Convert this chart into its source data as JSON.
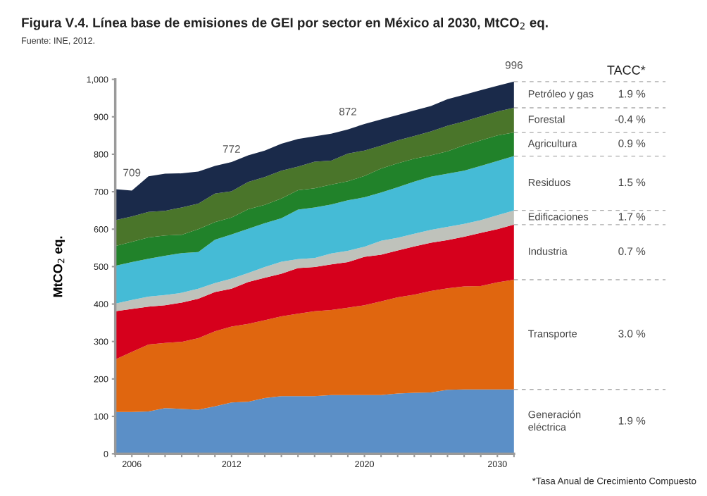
{
  "chart_data": {
    "type": "area",
    "stacked": true,
    "title": "Figura V.4. Línea base de emisiones de GEI por sector en México al 2030, MtCO$_{2}$ eq.",
    "subtitle": "Fuente: INE, 2012.",
    "ylabel": "MtCO$_{2}$ eq.",
    "categories": [
      null,
      "2006",
      null,
      null,
      null,
      null,
      null,
      "2012",
      null,
      null,
      null,
      null,
      null,
      null,
      null,
      "2020",
      null,
      null,
      null,
      null,
      null,
      null,
      null,
      "2030",
      null
    ],
    "series": [
      {
        "name": "Generación\neléctrica",
        "color": "#5b8fc7",
        "values": [
          112,
          112,
          113,
          122,
          120,
          118,
          127,
          137,
          139,
          149,
          154,
          154,
          154,
          157,
          157,
          157,
          157,
          161,
          163,
          164,
          171,
          172,
          172,
          172,
          172
        ]
      },
      {
        "name": "Transporte",
        "color": "#e0660f",
        "values": [
          140,
          160,
          179,
          174,
          179,
          191,
          200,
          203,
          208,
          208,
          213,
          220,
          227,
          227,
          233,
          240,
          250,
          257,
          262,
          271,
          271,
          275,
          276,
          286,
          293
        ]
      },
      {
        "name": "Industria",
        "color": "#d6001c",
        "values": [
          129,
          115,
          101,
          101,
          105,
          105,
          105,
          101,
          112,
          113,
          114,
          122,
          118,
          122,
          122,
          129,
          125,
          125,
          129,
          129,
          129,
          133,
          142,
          142,
          147
        ]
      },
      {
        "name": "Edificaciones",
        "color": "#bfc2bb",
        "values": [
          20,
          24,
          27,
          27,
          26,
          27,
          24,
          27,
          24,
          29,
          32,
          24,
          24,
          29,
          30,
          27,
          37,
          34,
          34,
          34,
          35,
          34,
          34,
          37,
          38
        ]
      },
      {
        "name": "Residuos",
        "color": "#45bbd6",
        "values": [
          101,
          101,
          101,
          105,
          106,
          98,
          116,
          118,
          118,
          117,
          116,
          132,
          135,
          131,
          135,
          132,
          129,
          135,
          139,
          142,
          142,
          142,
          145,
          145,
          145
        ]
      },
      {
        "name": "Agricultura",
        "color": "#21822a",
        "values": [
          53,
          54,
          57,
          54,
          49,
          61,
          47,
          45,
          52,
          49,
          53,
          52,
          51,
          53,
          51,
          57,
          64,
          64,
          61,
          57,
          60,
          68,
          68,
          68,
          63
        ]
      },
      {
        "name": "Forestal",
        "color": "#4a752a",
        "values": [
          69,
          68,
          68,
          66,
          73,
          68,
          76,
          70,
          73,
          74,
          74,
          63,
          71,
          64,
          74,
          68,
          61,
          61,
          61,
          64,
          68,
          64,
          64,
          64,
          66
        ]
      },
      {
        "name": "Petróleo y gas",
        "color": "#1a2a4a",
        "values": [
          83,
          69,
          95,
          99,
          91,
          86,
          74,
          78,
          71,
          71,
          72,
          74,
          68,
          72,
          64,
          71,
          70,
          68,
          68,
          68,
          71,
          71,
          70,
          69,
          70
        ]
      }
    ],
    "ylim": [
      0,
      1000
    ],
    "yticks": [
      0,
      100,
      200,
      300,
      400,
      500,
      600,
      700,
      800,
      900,
      {
        "value": 1000,
        "label": "1,000"
      }
    ],
    "grid": false,
    "legend": false,
    "annotations": [
      {
        "text": "709",
        "x": "2006",
        "y": 709
      },
      {
        "text": "772",
        "x": "2012",
        "y": 772
      },
      {
        "text": "872",
        "y": 872
      },
      {
        "text": "996",
        "y": 996
      },
      "TACC*",
      "1.9 %",
      "-0.4 %",
      "0.9 %",
      "1.5 %",
      "1.7 %",
      "0.7 %",
      "3.0 %",
      "1.9 %",
      "*Tasa Anual de Crecimiento Compuesto"
    ]
  }
}
